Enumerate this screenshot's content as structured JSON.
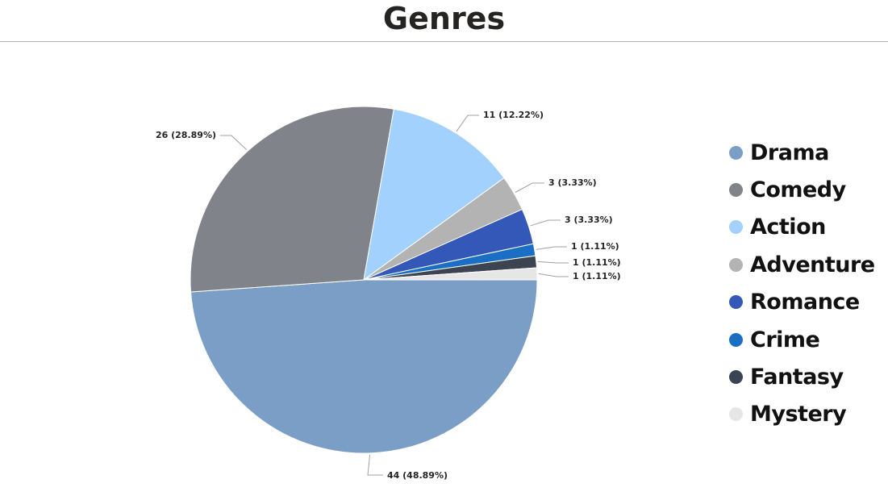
{
  "page": {
    "title": "Genres"
  },
  "chart_data": {
    "type": "pie",
    "title": "Genres",
    "legend_position": "right",
    "slices": [
      {
        "name": "Drama",
        "value": 44,
        "label": "44 (48.89%)",
        "color": "#7b9ec7"
      },
      {
        "name": "Comedy",
        "value": 26,
        "label": "26 (28.89%)",
        "color": "#808389"
      },
      {
        "name": "Action",
        "value": 11,
        "label": "11 (12.22%)",
        "color": "#a2d1fd"
      },
      {
        "name": "Adventure",
        "value": 3,
        "label": "3 (3.33%)",
        "color": "#b3b3b3"
      },
      {
        "name": "Romance",
        "value": 3,
        "label": "3 (3.33%)",
        "color": "#3458b8"
      },
      {
        "name": "Crime",
        "value": 1,
        "label": "1 (1.11%)",
        "color": "#1a6fc4"
      },
      {
        "name": "Fantasy",
        "value": 1,
        "label": "1 (1.11%)",
        "color": "#3b4450"
      },
      {
        "name": "Mystery",
        "value": 1,
        "label": "1 (1.11%)",
        "color": "#e6e6e6"
      }
    ]
  }
}
